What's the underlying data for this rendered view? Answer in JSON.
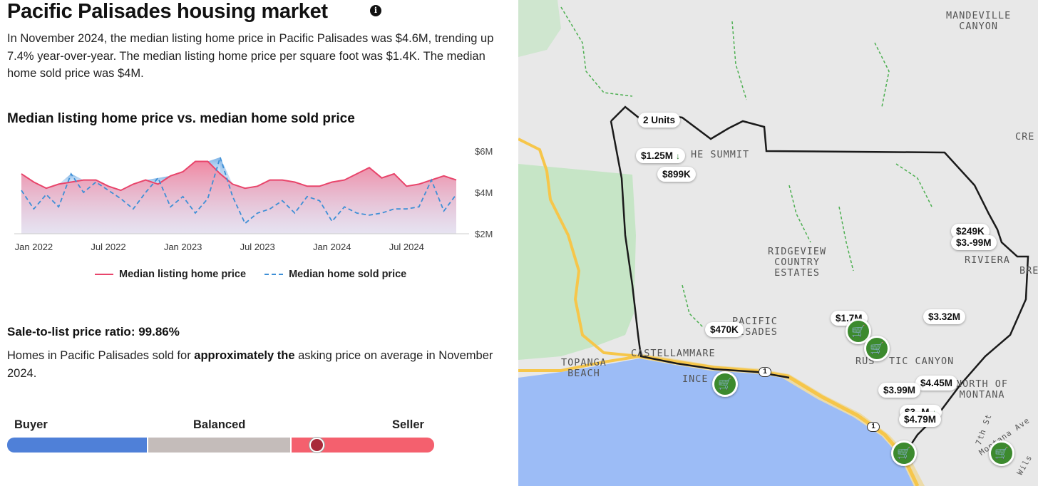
{
  "header": {
    "title": "Pacific Palisades housing market",
    "info_icon": "info-icon",
    "summary": "In November 2024, the median listing home price in Pacific Palisades was $4.6M, trending up 7.4% year-over-year. The median listing home price per square foot was $1.4K. The median home sold price was $4M."
  },
  "chart_section": {
    "title": "Median listing home price vs. median home sold price"
  },
  "chart_data": {
    "type": "line",
    "title": "Median listing home price vs. median home sold price",
    "x_tick_labels": [
      "Jan 2022",
      "Jul 2022",
      "Jan 2023",
      "Jul 2023",
      "Jan 2024",
      "Jul 2024"
    ],
    "y_tick_labels": [
      "$6M",
      "$4M",
      "$2M"
    ],
    "ylim": [
      2,
      6
    ],
    "y_unit": "$M",
    "grid": false,
    "legend_position": "bottom",
    "x": [
      "2021-12",
      "2022-01",
      "2022-02",
      "2022-03",
      "2022-04",
      "2022-05",
      "2022-06",
      "2022-07",
      "2022-08",
      "2022-09",
      "2022-10",
      "2022-11",
      "2022-12",
      "2023-01",
      "2023-02",
      "2023-03",
      "2023-04",
      "2023-05",
      "2023-06",
      "2023-07",
      "2023-08",
      "2023-09",
      "2023-10",
      "2023-11",
      "2023-12",
      "2024-01",
      "2024-02",
      "2024-03",
      "2024-04",
      "2024-05",
      "2024-06",
      "2024-07",
      "2024-08",
      "2024-09",
      "2024-10",
      "2024-11"
    ],
    "series": [
      {
        "name": "Median listing home price",
        "color": "#e8456b",
        "style": "solid",
        "values": [
          4.9,
          4.5,
          4.2,
          4.4,
          4.5,
          4.6,
          4.6,
          4.3,
          4.1,
          4.4,
          4.6,
          4.4,
          4.8,
          5.0,
          5.5,
          5.5,
          4.9,
          4.4,
          4.2,
          4.3,
          4.6,
          4.6,
          4.5,
          4.3,
          4.3,
          4.5,
          4.6,
          4.9,
          5.2,
          4.7,
          4.9,
          4.3,
          4.4,
          4.6,
          4.8,
          4.6
        ]
      },
      {
        "name": "Median home sold price",
        "color": "#3d8fd6",
        "style": "dashed",
        "values": [
          4.1,
          3.2,
          3.9,
          3.3,
          4.9,
          4.0,
          4.5,
          4.1,
          3.7,
          3.2,
          4.0,
          4.7,
          3.3,
          3.8,
          3.0,
          3.7,
          5.7,
          3.8,
          2.5,
          3.0,
          3.2,
          3.6,
          3.0,
          3.8,
          3.6,
          2.6,
          3.3,
          3.0,
          2.9,
          3.0,
          3.2,
          3.2,
          3.3,
          4.6,
          3.1,
          3.9
        ]
      }
    ]
  },
  "legend": {
    "listing_label": "Median listing home price",
    "sold_label": "Median home sold price"
  },
  "ratio": {
    "title": "Sale-to-list price ratio: 99.86%",
    "text_before": "Homes in Pacific Palisades sold for ",
    "text_bold": "approximately the",
    "text_after": " asking price on average in November 2024."
  },
  "market_scale": {
    "buyer_label": "Buyer",
    "balanced_label": "Balanced",
    "seller_label": "Seller",
    "buyer_color": "#4f80d8",
    "balanced_color": "#c4bcba",
    "seller_color": "#f4606e"
  },
  "map": {
    "colors": {
      "land": "#e8e8e8",
      "ocean": "#9cbcf6",
      "park": "#c6e5c6",
      "highway": "#f6c64a",
      "boundary": "#1a1a1a",
      "trail": "#4caf50"
    },
    "areas": {
      "mandeville": "MANDEVILLE\nCANYON",
      "the_summit": "HE SUMMIT",
      "ridgeview": "RIDGEVIEW\nCOUNTRY\nESTATES",
      "riviera": "RIVIERA",
      "pacific_palisades": "PACIFIC\nLISADES",
      "castellammare": "CASTELLAMMARE",
      "topanga": "TOPANGA\nBEACH",
      "incw": "INCE",
      "rustic": "RUS",
      "canyon": "TIC CANYON",
      "north_montana": "NORTH OF\nMONTANA",
      "bre": "BRE",
      "cre": "CRE",
      "seventh": "7th St",
      "montana_ave": "Montana Ave",
      "wils": "Wils"
    },
    "pins": {
      "units": "2 Units",
      "p125": "$1.25M",
      "p899": "$899K",
      "p249": "$249K",
      "p399a": "$3.-99M",
      "p470": "$470K",
      "p17": "$1.7M",
      "p332": "$3.32M",
      "p445": "$4.45M",
      "p399": "$3.99M",
      "p479": "$4.79M",
      "p3x": "$3.-M"
    },
    "highway_shield": "1"
  }
}
